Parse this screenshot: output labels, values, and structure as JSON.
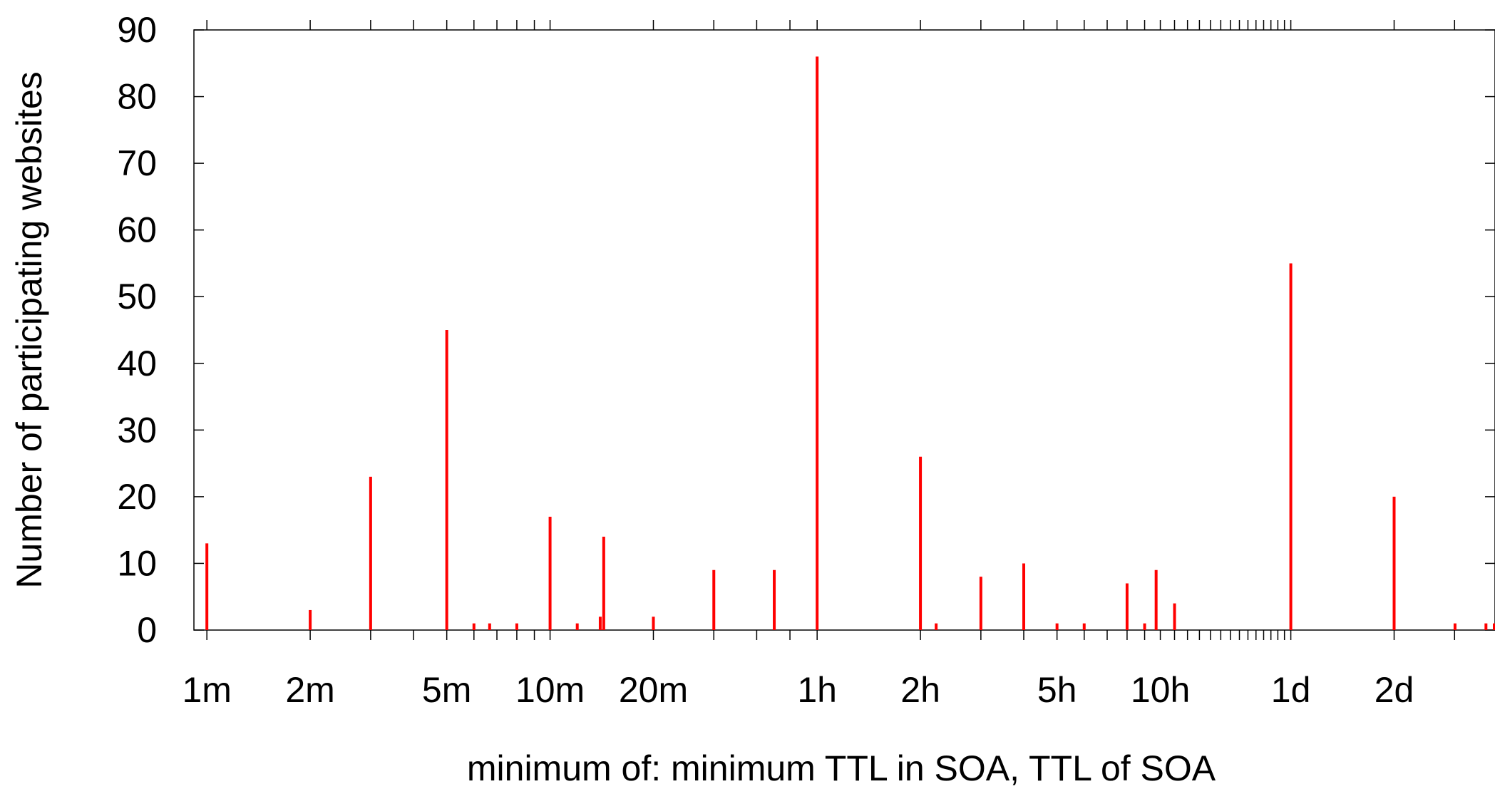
{
  "chart_data": {
    "type": "bar",
    "title": "",
    "xlabel": "minimum of: minimum TTL in SOA, TTL of SOA",
    "ylabel": "Number of participating websites",
    "x_scale": "log",
    "x_unit": "seconds",
    "xlim": [
      55,
      340000
    ],
    "ylim": [
      0,
      90
    ],
    "y_ticks": [
      0,
      10,
      20,
      30,
      40,
      50,
      60,
      70,
      80,
      90
    ],
    "x_tick_labels": [
      {
        "value": 60,
        "label": "1m"
      },
      {
        "value": 120,
        "label": "2m"
      },
      {
        "value": 300,
        "label": "5m"
      },
      {
        "value": 600,
        "label": "10m"
      },
      {
        "value": 1200,
        "label": "20m"
      },
      {
        "value": 3600,
        "label": "1h"
      },
      {
        "value": 7200,
        "label": "2h"
      },
      {
        "value": 18000,
        "label": "5h"
      },
      {
        "value": 36000,
        "label": "10h"
      },
      {
        "value": 86400,
        "label": "1d"
      },
      {
        "value": 172800,
        "label": "2d"
      }
    ],
    "x_minor_ticks": [
      60,
      120,
      180,
      240,
      300,
      360,
      420,
      480,
      540,
      600,
      1200,
      1800,
      2400,
      3000,
      3600,
      7200,
      10800,
      14400,
      18000,
      21600,
      25200,
      28800,
      32400,
      36000,
      39600,
      43200,
      46800,
      50400,
      54000,
      57600,
      61200,
      64800,
      68400,
      72000,
      75600,
      79200,
      82800,
      86400,
      172800,
      259200,
      345600
    ],
    "grid": false,
    "color": "#ff0000",
    "x": [
      60,
      120,
      180,
      300,
      360,
      400,
      480,
      600,
      720,
      840,
      860,
      1200,
      1800,
      2700,
      3600,
      7200,
      8000,
      10800,
      14400,
      18000,
      21600,
      28800,
      32400,
      35000,
      39600,
      86400,
      172800,
      260000,
      320000,
      500000
    ],
    "values": [
      13,
      3,
      23,
      45,
      1,
      1,
      1,
      17,
      1,
      2,
      14,
      2,
      9,
      9,
      86,
      26,
      1,
      8,
      10,
      1,
      1,
      7,
      1,
      9,
      4,
      55,
      20,
      1,
      1,
      1
    ]
  }
}
